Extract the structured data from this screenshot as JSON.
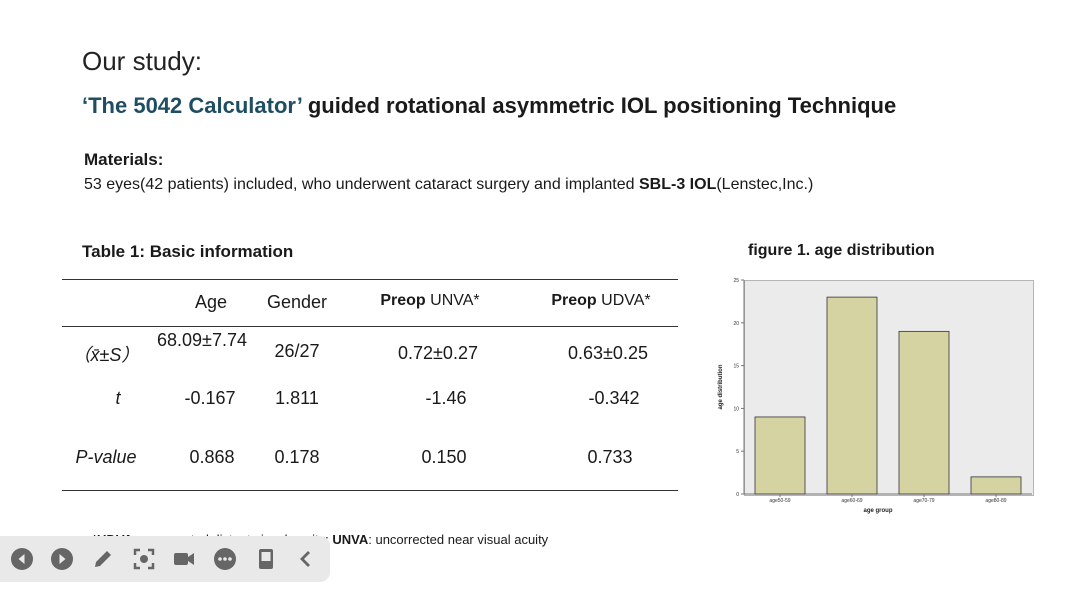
{
  "slide": {
    "heading": "Our study:",
    "title_accent": "‘The 5042 Calculator’",
    "title_rest": " guided rotational asymmetric  IOL positioning Technique",
    "materials_label": "Materials:",
    "materials_pre": "53 eyes(42 patients) included, who underwent  cataract surgery and implanted ",
    "materials_bold": "SBL-3 IOL",
    "materials_post": "(Lenstec,Inc.)"
  },
  "table": {
    "caption": "Table 1: Basic information",
    "headers": {
      "age": "Age",
      "gender": "Gender",
      "unva_bold": "Preop",
      "unva_rest": " UNVA*",
      "udva_bold": "Preop",
      "udva_rest": " UDVA*"
    },
    "rows": [
      {
        "label": "（x̄±S）",
        "age": "68.09±7.74",
        "gender": "26/27",
        "unva": "0.72±0.27",
        "udva": "0.63±0.25"
      },
      {
        "label": "t",
        "age": "-0.167",
        "gender": "1.811",
        "unva": "-1.46",
        "udva": "-0.342"
      },
      {
        "label": "P-value",
        "age": "0.868",
        "gender": "0.178",
        "unva": "0.150",
        "udva": "0.733"
      }
    ],
    "footnote_b1": "*UDVA",
    "footnote_t1": ": uncorrected distant visual acuity;   ",
    "footnote_b2": "UNVA",
    "footnote_t2": ": uncorrected near visual acuity"
  },
  "figure": {
    "caption": "figure  1.   age distribution"
  },
  "chart_data": {
    "type": "bar",
    "categories": [
      "age50-59",
      "age60-69",
      "age70-79",
      "age80-89"
    ],
    "values": [
      9,
      23,
      19,
      2
    ],
    "xlabel": "age group",
    "ylabel": "age distribution",
    "ylim": [
      0,
      25
    ],
    "yticks": [
      0,
      5,
      10,
      15,
      20,
      25
    ],
    "bar_color": "#d6d3a3",
    "grid": false
  },
  "toolbar": {
    "icons": [
      "previous-icon",
      "next-icon",
      "pen-icon",
      "screenshot-icon",
      "camera-icon",
      "more-icon",
      "device-icon",
      "collapse-icon"
    ]
  }
}
